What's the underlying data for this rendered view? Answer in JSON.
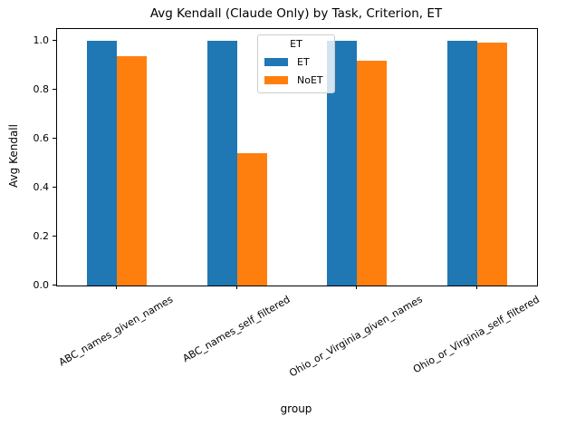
{
  "figure": {
    "title": "Avg Kendall (Claude Only) by Task, Criterion, ET",
    "xlabel": "group",
    "ylabel": "Avg Kendall"
  },
  "chart_data": {
    "type": "bar",
    "title": "Avg Kendall (Claude Only) by Task, Criterion, ET",
    "xlabel": "group",
    "ylabel": "Avg Kendall",
    "categories": [
      "ABC_names_given_names",
      "ABC_names_self_filtered",
      "Ohio_or_Virginia_given_names",
      "Ohio_or_Virginia_self_filtered"
    ],
    "series": [
      {
        "name": "ET",
        "color": "#1f77b4",
        "values": [
          1.0,
          1.0,
          1.0,
          1.0
        ]
      },
      {
        "name": "NoET",
        "color": "#ff7f0e",
        "values": [
          0.94,
          0.54,
          0.92,
          0.995
        ]
      }
    ],
    "ylim": [
      0,
      1.05
    ],
    "yticks": [
      0.0,
      0.2,
      0.4,
      0.6,
      0.8,
      1.0
    ],
    "ytick_format_decimals": 1,
    "xtick_rotation_deg": 30,
    "grid": false,
    "legend": {
      "title": "ET",
      "entries": [
        "ET",
        "NoET"
      ],
      "position": "upper center"
    },
    "colors": {
      "axes_spine": "#000000",
      "text": "#000000",
      "legend_border": "#cccccc"
    }
  }
}
